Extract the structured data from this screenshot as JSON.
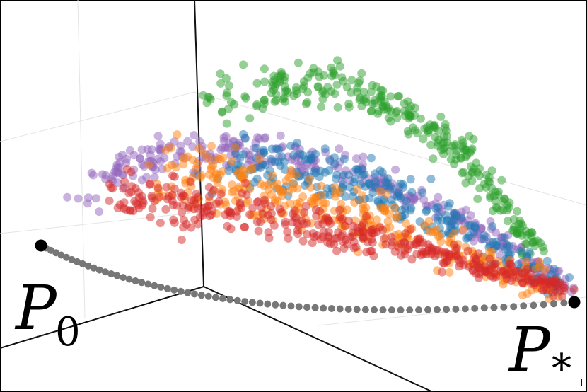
{
  "labels": {
    "start": {
      "letter": "P",
      "subscript": "0"
    },
    "end": {
      "letter": "P",
      "subscript": "*"
    }
  }
}
